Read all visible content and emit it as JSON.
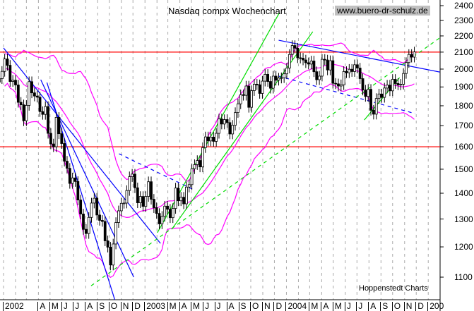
{
  "chart_data": {
    "type": "candlestick",
    "title": "Nasdaq compx Wochenchart",
    "watermark": "www.buero-dr-schulz.de",
    "credit": "Hoppenstedt Charts",
    "y_scale": "log",
    "ylim": [
      1030,
      2440
    ],
    "xlim": [
      "2001-12-17",
      "2005-02-10"
    ],
    "grid": "vertical dashed monthly",
    "y_ticks": [
      1100,
      1200,
      1300,
      1400,
      1500,
      1600,
      1700,
      1800,
      1900,
      2000,
      2100,
      2200,
      2300,
      2400
    ],
    "x_ticks": [
      {
        "label": "2002",
        "month": "2002-01"
      },
      {
        "label": "A",
        "month": "2002-04"
      },
      {
        "label": "M",
        "month": "2002-05"
      },
      {
        "label": "J",
        "month": "2002-06"
      },
      {
        "label": "J",
        "month": "2002-07"
      },
      {
        "label": "A",
        "month": "2002-08"
      },
      {
        "label": "S",
        "month": "2002-09"
      },
      {
        "label": "O",
        "month": "2002-10"
      },
      {
        "label": "N",
        "month": "2002-11"
      },
      {
        "label": "D",
        "month": "2002-12"
      },
      {
        "label": "2003",
        "month": "2003-01"
      },
      {
        "label": "M",
        "month": "2003-03"
      },
      {
        "label": "A",
        "month": "2003-04"
      },
      {
        "label": "M",
        "month": "2003-05"
      },
      {
        "label": "J",
        "month": "2003-06"
      },
      {
        "label": "J",
        "month": "2003-07"
      },
      {
        "label": "A",
        "month": "2003-08"
      },
      {
        "label": "S",
        "month": "2003-09"
      },
      {
        "label": "O",
        "month": "2003-10"
      },
      {
        "label": "N",
        "month": "2003-11"
      },
      {
        "label": "D",
        "month": "2003-12"
      },
      {
        "label": "2004",
        "month": "2004-01"
      },
      {
        "label": "M",
        "month": "2004-03"
      },
      {
        "label": "A",
        "month": "2004-04"
      },
      {
        "label": "M",
        "month": "2004-05"
      },
      {
        "label": "J",
        "month": "2004-06"
      },
      {
        "label": "J",
        "month": "2004-07"
      },
      {
        "label": "A",
        "month": "2004-08"
      },
      {
        "label": "S",
        "month": "2004-09"
      },
      {
        "label": "O",
        "month": "2004-10"
      },
      {
        "label": "N",
        "month": "2004-11"
      },
      {
        "label": "D",
        "month": "2004-12"
      },
      {
        "label": "200",
        "month": "2005-01"
      }
    ],
    "dates": [
      "2001-12-21",
      "2001-12-28",
      "2002-01-04",
      "2002-01-11",
      "2002-01-18",
      "2002-01-25",
      "2002-02-01",
      "2002-02-08",
      "2002-02-15",
      "2002-02-22",
      "2002-03-01",
      "2002-03-08",
      "2002-03-15",
      "2002-03-22",
      "2002-03-29",
      "2002-04-05",
      "2002-04-12",
      "2002-04-19",
      "2002-04-26",
      "2002-05-03",
      "2002-05-10",
      "2002-05-17",
      "2002-05-24",
      "2002-05-31",
      "2002-06-07",
      "2002-06-14",
      "2002-06-21",
      "2002-06-28",
      "2002-07-05",
      "2002-07-12",
      "2002-07-19",
      "2002-07-26",
      "2002-08-02",
      "2002-08-09",
      "2002-08-16",
      "2002-08-23",
      "2002-08-30",
      "2002-09-06",
      "2002-09-13",
      "2002-09-20",
      "2002-09-27",
      "2002-10-04",
      "2002-10-11",
      "2002-10-18",
      "2002-10-25",
      "2002-11-01",
      "2002-11-08",
      "2002-11-15",
      "2002-11-22",
      "2002-11-29",
      "2002-12-06",
      "2002-12-13",
      "2002-12-20",
      "2002-12-27",
      "2003-01-03",
      "2003-01-10",
      "2003-01-17",
      "2003-01-24",
      "2003-01-31",
      "2003-02-07",
      "2003-02-14",
      "2003-02-21",
      "2003-02-28",
      "2003-03-07",
      "2003-03-14",
      "2003-03-21",
      "2003-03-28",
      "2003-04-04",
      "2003-04-11",
      "2003-04-18",
      "2003-04-25",
      "2003-05-02",
      "2003-05-09",
      "2003-05-16",
      "2003-05-23",
      "2003-05-30",
      "2003-06-06",
      "2003-06-13",
      "2003-06-20",
      "2003-06-27",
      "2003-07-04",
      "2003-07-11",
      "2003-07-18",
      "2003-07-25",
      "2003-08-01",
      "2003-08-08",
      "2003-08-15",
      "2003-08-22",
      "2003-08-29",
      "2003-09-05",
      "2003-09-12",
      "2003-09-19",
      "2003-09-26",
      "2003-10-03",
      "2003-10-10",
      "2003-10-17",
      "2003-10-24",
      "2003-10-31",
      "2003-11-07",
      "2003-11-14",
      "2003-11-21",
      "2003-11-28",
      "2003-12-05",
      "2003-12-12",
      "2003-12-19",
      "2003-12-26",
      "2004-01-02",
      "2004-01-09",
      "2004-01-16",
      "2004-01-23",
      "2004-01-30",
      "2004-02-06",
      "2004-02-13",
      "2004-02-20",
      "2004-02-27",
      "2004-03-05",
      "2004-03-12",
      "2004-03-19",
      "2004-03-26",
      "2004-04-02",
      "2004-04-09",
      "2004-04-16",
      "2004-04-23",
      "2004-04-30",
      "2004-05-07",
      "2004-05-14",
      "2004-05-21",
      "2004-05-28",
      "2004-06-04",
      "2004-06-11",
      "2004-06-18",
      "2004-06-25",
      "2004-07-02",
      "2004-07-09",
      "2004-07-16",
      "2004-07-23",
      "2004-07-30",
      "2004-08-06",
      "2004-08-13",
      "2004-08-20",
      "2004-08-27",
      "2004-09-03",
      "2004-09-10",
      "2004-09-17",
      "2004-09-24",
      "2004-10-01",
      "2004-10-08",
      "2004-10-15",
      "2004-10-22",
      "2004-10-29",
      "2004-11-05",
      "2004-11-12",
      "2004-11-19",
      "2004-11-26"
    ],
    "close": [
      1946,
      1987,
      2059,
      2022,
      1930,
      1937,
      1911,
      1818,
      1805,
      1724,
      1802,
      1929,
      1868,
      1851,
      1845,
      1770,
      1756,
      1796,
      1663,
      1613,
      1600,
      1741,
      1661,
      1615,
      1535,
      1504,
      1440,
      1463,
      1448,
      1373,
      1319,
      1262,
      1247,
      1306,
      1361,
      1380,
      1315,
      1295,
      1291,
      1221,
      1199,
      1139,
      1210,
      1287,
      1331,
      1360,
      1361,
      1411,
      1468,
      1479,
      1422,
      1362,
      1387,
      1348,
      1387,
      1447,
      1376,
      1343,
      1321,
      1282,
      1310,
      1349,
      1337,
      1305,
      1340,
      1421,
      1370,
      1384,
      1358,
      1425,
      1435,
      1502,
      1520,
      1538,
      1510,
      1596,
      1646,
      1627,
      1645,
      1625,
      1663,
      1733,
      1708,
      1730,
      1715,
      1660,
      1702,
      1765,
      1810,
      1858,
      1855,
      1905,
      1792,
      1880,
      1915,
      1912,
      1865,
      1932,
      1970,
      1930,
      1893,
      1960,
      1937,
      1949,
      1951,
      1973,
      2006,
      2086,
      2140,
      2124,
      2066,
      2064,
      2053,
      2037,
      2029,
      2047,
      1985,
      1940,
      1960,
      2057,
      2053,
      1995,
      2049,
      1920,
      1917,
      1905,
      1912,
      1986,
      1979,
      1999,
      1986,
      2025,
      2006,
      1946,
      1883,
      1849,
      1887,
      1777,
      1757,
      1838,
      1862,
      1844,
      1894,
      1910,
      1879,
      1942,
      1919,
      1911,
      1915,
      1975,
      2038,
      2086,
      2070,
      2101
    ],
    "horizontal_lines": [
      {
        "value": 2100,
        "color": "#ff0000"
      },
      {
        "value": 1600,
        "color": "#ff0000"
      }
    ],
    "trendlines": [
      {
        "color": "#0000ff",
        "style": "solid",
        "from": [
          "2002-01-01",
          2125
        ],
        "to": [
          "2003-02-10",
          1212
        ]
      },
      {
        "color": "#0000ff",
        "style": "solid",
        "from": [
          "2002-04-07",
          1940
        ],
        "to": [
          "2002-12-03",
          1100
        ]
      },
      {
        "color": "#0000ff",
        "style": "solid",
        "from": [
          "2002-04-23",
          1924
        ],
        "to": [
          "2002-10-15",
          1031
        ]
      },
      {
        "color": "#0000ff",
        "style": "dashed",
        "from": [
          "2002-10-26",
          1568
        ],
        "to": [
          "2003-05-03",
          1417
        ]
      },
      {
        "color": "#0000ff",
        "style": "solid",
        "from": [
          "2003-12-12",
          2173
        ],
        "to": [
          "2005-03-25",
          1960
        ]
      },
      {
        "color": "#0000ff",
        "style": "dashed",
        "from": [
          "2003-12-12",
          1960
        ],
        "to": [
          "2004-11-28",
          1760
        ]
      },
      {
        "color": "#00dd00",
        "style": "solid",
        "from": [
          "2003-02-02",
          1250
        ],
        "to": [
          "2003-12-14",
          2352
        ]
      },
      {
        "color": "#00dd00",
        "style": "solid",
        "from": [
          "2003-03-11",
          1262
        ],
        "to": [
          "2004-03-09",
          2227
        ]
      },
      {
        "color": "#00dd00",
        "style": "solid",
        "from": [
          "2004-07-20",
          1728
        ],
        "to": [
          "2004-10-19",
          1952
        ]
      },
      {
        "color": "#00dd00",
        "style": "dashed",
        "from": [
          "2002-08-15",
          1073
        ],
        "to": [
          "2005-04-22",
          2333
        ]
      }
    ],
    "band_color": "#ff00ff",
    "up_color": "#ffffff",
    "down_color": "#000000"
  }
}
